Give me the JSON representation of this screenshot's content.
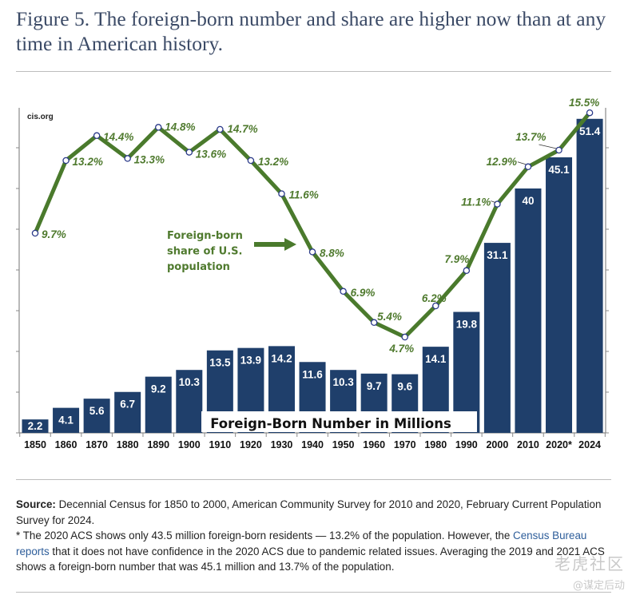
{
  "figure": {
    "title": "Figure 5. The foreign-born number and share are higher now than at any time in American history.",
    "source_label": "Source:",
    "source_text": " Decennial Census for 1850 to 2000, American Community Survey for 2010 and 2020, February Current Population Survey for 2024.",
    "note_part1": "* The 2020 ACS shows only 43.5 million foreign-born residents — 13.2% of the population. However, the ",
    "note_link": "Census Bureau reports",
    "note_part2": " that it does not have confidence in the 2020 ACS due to pandemic related issues. Averaging the 2019 and 2021 ACS shows a foreign-born number that was 45.1 million and 13.7% of the population.",
    "watermark_line1": "老虎社区",
    "watermark_line2": "@谋定后动"
  },
  "colors": {
    "bar": "#1f3f6b",
    "line": "#4a7a2c",
    "label_green": "#4f7a2e",
    "marker_stroke": "#2b3a8a",
    "title": "#3b4a66",
    "link": "#2d5d9a"
  },
  "chart_data": {
    "type": "bar+line",
    "watermark": "cis.org",
    "categories": [
      "1850",
      "1860",
      "1870",
      "1880",
      "1890",
      "1900",
      "1910",
      "1920",
      "1930",
      "1940",
      "1950",
      "1960",
      "1970",
      "1980",
      "1990",
      "2000",
      "2010",
      "2020*",
      "2024"
    ],
    "series": [
      {
        "name": "Foreign-Born Number in Millions",
        "type": "bar",
        "axis": "left",
        "values": [
          2.2,
          4.1,
          5.6,
          6.7,
          9.2,
          10.3,
          13.5,
          13.9,
          14.2,
          11.6,
          10.3,
          9.7,
          9.6,
          14.1,
          19.8,
          31.1,
          40,
          45.1,
          51.4
        ],
        "labels": [
          "2.2",
          "4.1",
          "5.6",
          "6.7",
          "9.2",
          "10.3",
          "13.5",
          "13.9",
          "14.2",
          "11.6",
          "10.3",
          "9.7",
          "9.6",
          "14.1",
          "19.8",
          "31.1",
          "40",
          "45.1",
          "51.4"
        ]
      },
      {
        "name": "Foreign-born share of U.S. population",
        "type": "line",
        "axis": "right",
        "values": [
          9.7,
          13.2,
          14.4,
          13.3,
          14.8,
          13.6,
          14.7,
          13.2,
          11.6,
          8.8,
          6.9,
          5.4,
          4.7,
          6.2,
          7.9,
          11.1,
          12.9,
          13.7,
          15.5
        ],
        "labels": [
          "9.7%",
          "13.2%",
          "14.4%",
          "13.3%",
          "14.8%",
          "13.6%",
          "14.7%",
          "13.2%",
          "11.6%",
          "8.8%",
          "6.9%",
          "5.4%",
          "4.7%",
          "6.2%",
          "7.9%",
          "11.1%",
          "12.9%",
          "13.7%",
          "15.5%"
        ]
      }
    ],
    "bar_legend_label": "Foreign-Born Number in Millions",
    "line_legend_label": [
      "Foreign-born",
      "share of U.S.",
      "population"
    ],
    "title": "",
    "xlabel": "",
    "ylabel": "",
    "ylim_bars": [
      0,
      52
    ],
    "ylim_line": [
      0,
      16
    ],
    "grid": false,
    "legend": "inline"
  }
}
